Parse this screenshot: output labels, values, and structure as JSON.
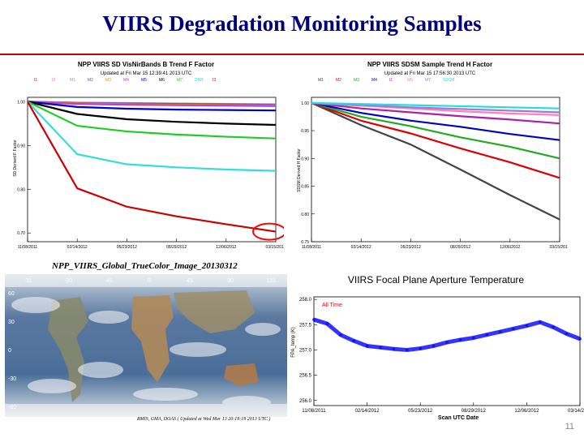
{
  "slide": {
    "title": "VIIRS  Degradation Monitoring Samples",
    "page_number": "11"
  },
  "chart_data": [
    {
      "type": "line",
      "title": "NPP VIIRS SD VisNirBands B Trend F Factor",
      "subtitle": "Updated at Fri Mar 15 12:39:41 2013 UTC",
      "ylabel": "SD Derived F Factor",
      "xlabel": "",
      "ylim": [
        0.68,
        1.01
      ],
      "yticks": [
        1.0,
        0.9,
        0.8,
        0.7
      ],
      "ytick_labels": [
        "1.00",
        "0.90",
        "0.80",
        "0.70"
      ],
      "xticks": [
        "11/08/2011",
        "02/14/2012",
        "05/23/2012",
        "08/29/2012",
        "12/06/2012",
        "03/15/2013"
      ],
      "legend_position": "top",
      "series": [
        {
          "name": "I1",
          "color": "#7a1f1f",
          "values": [
            1.0,
            0.997,
            0.995,
            0.994,
            0.993,
            0.992
          ]
        },
        {
          "name": "I2",
          "color": "#ff6fcf",
          "values": [
            1.0,
            0.997,
            0.996,
            0.995,
            0.994,
            0.993
          ]
        },
        {
          "name": "M1",
          "color": "#999999",
          "values": [
            1.0,
            0.998,
            0.997,
            0.996,
            0.995,
            0.994
          ]
        },
        {
          "name": "M2",
          "color": "#7b4ea8",
          "values": [
            1.0,
            0.997,
            0.996,
            0.995,
            0.994,
            0.993
          ]
        },
        {
          "name": "M3",
          "color": "#ff8c00",
          "values": [
            1.0,
            0.996,
            0.994,
            0.993,
            0.992,
            0.991
          ]
        },
        {
          "name": "M4",
          "color": "#c040c0",
          "values": [
            1.0,
            0.995,
            0.993,
            0.992,
            0.991,
            0.99
          ]
        },
        {
          "name": "M5",
          "color": "#0000cc",
          "values": [
            1.0,
            0.988,
            0.984,
            0.982,
            0.981,
            0.98
          ]
        },
        {
          "name": "M6",
          "color": "#000000",
          "values": [
            1.0,
            0.972,
            0.96,
            0.954,
            0.95,
            0.947
          ]
        },
        {
          "name": "M7",
          "color": "#22cc22",
          "values": [
            1.0,
            0.945,
            0.932,
            0.925,
            0.92,
            0.916
          ]
        },
        {
          "name": "DNB",
          "color": "#33dddd",
          "values": [
            1.0,
            0.88,
            0.857,
            0.85,
            0.845,
            0.842
          ]
        },
        {
          "name": "I3",
          "color": "#cc0000",
          "values": [
            1.0,
            0.802,
            0.76,
            0.738,
            0.72,
            0.703
          ]
        }
      ],
      "annotations": [
        "red circle highlighting the latest I3 values"
      ]
    },
    {
      "type": "line",
      "title": "NPP VIIRS SDSM Sample Trend H Factor",
      "subtitle": "Updated at Fri Mar 15 17:56:30 2013 UTC",
      "ylabel": "SDSM Derived H Factor",
      "xlabel": "",
      "ylim": [
        0.75,
        1.01
      ],
      "yticks": [
        1.0,
        0.95,
        0.9,
        0.85,
        0.8,
        0.75
      ],
      "ytick_labels": [
        "1.00",
        "0.95",
        "0.90",
        "0.85",
        "0.80",
        "0.75"
      ],
      "xticks": [
        "11/08/2011",
        "02/14/2012",
        "05/23/2012",
        "08/29/2012",
        "12/06/2012",
        "03/15/2013"
      ],
      "legend_position": "top",
      "series": [
        {
          "name": "M1",
          "color": "#444444",
          "values": [
            1.0,
            0.96,
            0.925,
            0.88,
            0.834,
            0.79
          ]
        },
        {
          "name": "M2",
          "color": "#dd0000",
          "values": [
            1.0,
            0.968,
            0.945,
            0.918,
            0.893,
            0.865
          ]
        },
        {
          "name": "M3",
          "color": "#22aa22",
          "values": [
            1.0,
            0.975,
            0.958,
            0.938,
            0.921,
            0.9
          ]
        },
        {
          "name": "M4",
          "color": "#0000cc",
          "values": [
            1.0,
            0.982,
            0.968,
            0.957,
            0.944,
            0.933
          ]
        },
        {
          "name": "I1",
          "color": "#aa22aa",
          "values": [
            1.0,
            0.99,
            0.983,
            0.976,
            0.97,
            0.963
          ]
        },
        {
          "name": "M5",
          "color": "#ff7fb8",
          "values": [
            1.0,
            0.995,
            0.99,
            0.985,
            0.981,
            0.978
          ]
        },
        {
          "name": "M7",
          "color": "#9b7bd8",
          "values": [
            1.0,
            0.996,
            0.992,
            0.989,
            0.986,
            0.983
          ]
        },
        {
          "name": "SDSM",
          "color": "#22dddd",
          "values": [
            1.0,
            0.998,
            0.996,
            0.994,
            0.992,
            0.99
          ]
        }
      ]
    },
    {
      "type": "scatter",
      "title": "VIIRS Focal Plane Aperture Temperature",
      "xlabel": "Scan UTC Date",
      "ylabel": "FPA_temp (K)",
      "ylim": [
        255.9,
        258.05
      ],
      "yticks": [
        258.0,
        257.5,
        257.0,
        256.5,
        256.0
      ],
      "ytick_labels": [
        "258.0",
        "257.5",
        "257.0",
        "256.5",
        "256.0"
      ],
      "xticks": [
        "11/08/2011",
        "02/14/2012",
        "05/23/2012",
        "08/29/2012",
        "12/06/2012",
        "03/14/2013"
      ],
      "legend": "All Time",
      "legend_color": "#ff0000",
      "series_color": "#1010ff",
      "x": [
        0.0,
        0.05,
        0.1,
        0.15,
        0.2,
        0.25,
        0.3,
        0.35,
        0.4,
        0.45,
        0.5,
        0.55,
        0.6,
        0.65,
        0.7,
        0.75,
        0.8,
        0.85,
        0.9,
        0.95,
        1.0
      ],
      "values": [
        257.6,
        257.52,
        257.3,
        257.18,
        257.08,
        257.05,
        257.02,
        257.0,
        257.03,
        257.08,
        257.15,
        257.2,
        257.24,
        257.3,
        257.36,
        257.42,
        257.48,
        257.55,
        257.45,
        257.32,
        257.22
      ]
    }
  ],
  "image_panel": {
    "title": "NPP_VIIRS_Global_TrueColor_Image_20130312",
    "footer": "RMIS, GMA, DOAS ( Updated at Wed Mar 13 20:19:19 2013 UTC )",
    "lon_labels": [
      "-35",
      "-90",
      "-45",
      "0",
      "45",
      "90",
      "135"
    ],
    "lat_labels": [
      "60",
      "30",
      "0",
      "-30",
      "-60"
    ]
  }
}
